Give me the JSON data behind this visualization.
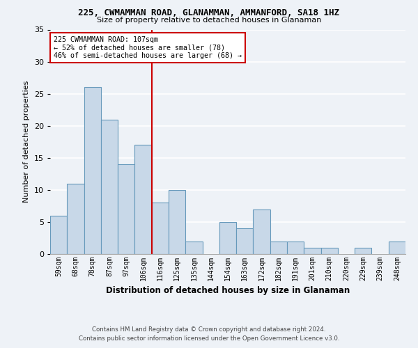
{
  "title": "225, CWMAMMAN ROAD, GLANAMMAN, AMMANFORD, SA18 1HZ",
  "subtitle": "Size of property relative to detached houses in Glanaman",
  "xlabel": "Distribution of detached houses by size in Glanaman",
  "ylabel": "Number of detached properties",
  "bar_labels": [
    "59sqm",
    "68sqm",
    "78sqm",
    "87sqm",
    "97sqm",
    "106sqm",
    "116sqm",
    "125sqm",
    "135sqm",
    "144sqm",
    "154sqm",
    "163sqm",
    "172sqm",
    "182sqm",
    "191sqm",
    "201sqm",
    "210sqm",
    "220sqm",
    "229sqm",
    "239sqm",
    "248sqm"
  ],
  "bar_values": [
    6,
    11,
    26,
    21,
    14,
    17,
    8,
    10,
    2,
    0,
    5,
    4,
    7,
    2,
    2,
    1,
    1,
    0,
    1,
    0,
    2
  ],
  "bar_color": "#c8d8e8",
  "bar_edge_color": "#6699bb",
  "vline_x": 5.5,
  "ylim": [
    0,
    35
  ],
  "yticks": [
    0,
    5,
    10,
    15,
    20,
    25,
    30,
    35
  ],
  "annotation_line1": "225 CWMAMMAN ROAD: 107sqm",
  "annotation_line2": "← 52% of detached houses are smaller (78)",
  "annotation_line3": "46% of semi-detached houses are larger (68) →",
  "annotation_box_color": "#ffffff",
  "annotation_box_edge": "#cc0000",
  "vline_color": "#cc0000",
  "footer_line1": "Contains HM Land Registry data © Crown copyright and database right 2024.",
  "footer_line2": "Contains public sector information licensed under the Open Government Licence v3.0.",
  "bg_color": "#eef2f7",
  "plot_bg_color": "#eef2f7",
  "grid_color": "#ffffff"
}
